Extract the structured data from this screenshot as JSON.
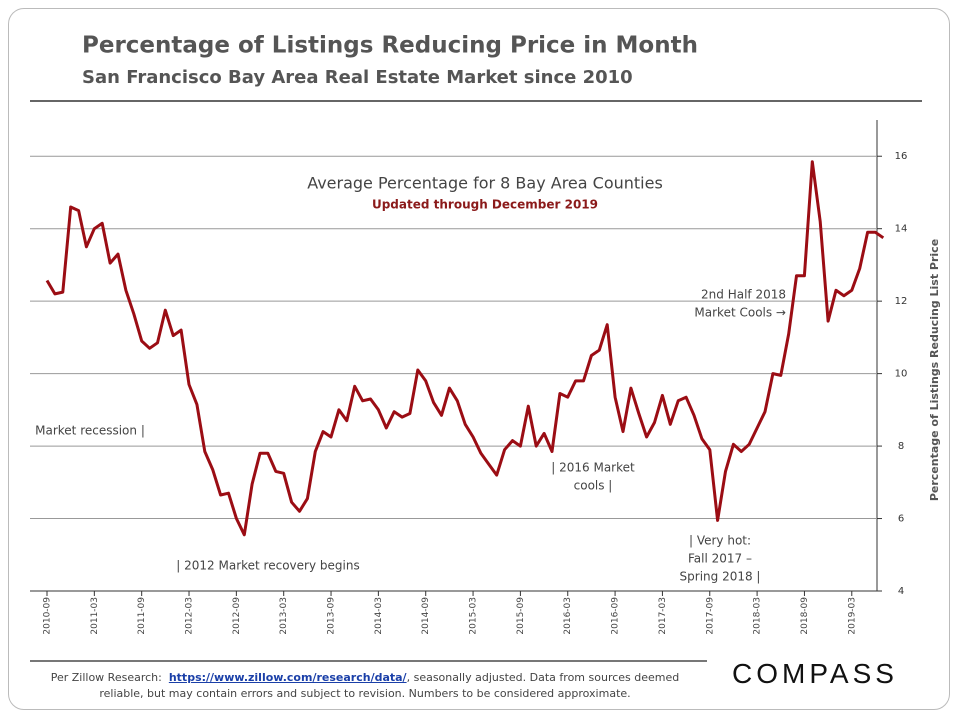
{
  "chart_data": {
    "type": "line",
    "title": "Percentage of Listings Reducing Price in Month",
    "subtitle": "San Francisco Bay Area Real Estate Market since 2010",
    "inner_title": "Average Percentage for 8 Bay Area Counties",
    "inner_subtitle": "Updated through December 2019",
    "y_label": "Percentage of Listings Reducing List Price",
    "categories": [
      "2010-09",
      null,
      null,
      null,
      null,
      null,
      "2011-03",
      null,
      null,
      null,
      null,
      null,
      "2011-09",
      null,
      null,
      null,
      null,
      null,
      "2012-03",
      null,
      null,
      null,
      null,
      null,
      "2012-09",
      null,
      null,
      null,
      null,
      null,
      "2013-03",
      null,
      null,
      null,
      null,
      null,
      "2013-09",
      null,
      null,
      null,
      null,
      null,
      "2014-03",
      null,
      null,
      null,
      null,
      null,
      "2014-09",
      null,
      null,
      null,
      null,
      null,
      "2015-03",
      null,
      null,
      null,
      null,
      null,
      "2015-09",
      null,
      null,
      null,
      null,
      null,
      "2016-03",
      null,
      null,
      null,
      null,
      null,
      "2016-09",
      null,
      null,
      null,
      null,
      null,
      "2017-03",
      null,
      null,
      null,
      null,
      null,
      "2017-09",
      null,
      null,
      null,
      null,
      null,
      "2018-03",
      null,
      null,
      null,
      null,
      null,
      "2018-09",
      null,
      null,
      null,
      null,
      null,
      "2019-03",
      null,
      null,
      null,
      null
    ],
    "series": [
      {
        "name": "Percentage of Listings Reducing List Price",
        "color": "#9b0d14",
        "values": [
          12.57,
          12.2,
          12.25,
          14.6,
          14.5,
          13.5,
          14.0,
          14.15,
          13.05,
          13.3,
          12.3,
          11.65,
          10.9,
          10.7,
          10.85,
          11.75,
          11.05,
          11.2,
          9.7,
          9.15,
          7.85,
          7.35,
          6.65,
          6.7,
          6.0,
          5.55,
          6.95,
          7.8,
          7.8,
          7.3,
          7.25,
          6.45,
          6.2,
          6.55,
          7.85,
          8.4,
          8.25,
          9.0,
          8.7,
          9.65,
          9.25,
          9.3,
          9.0,
          8.5,
          8.95,
          8.8,
          8.9,
          10.1,
          9.8,
          9.2,
          8.85,
          9.6,
          9.25,
          8.6,
          8.25,
          7.8,
          7.5,
          7.2,
          7.9,
          8.15,
          8.0,
          9.1,
          8.0,
          8.35,
          7.85,
          9.45,
          9.35,
          9.8,
          9.8,
          10.5,
          10.65,
          11.35,
          9.35,
          8.4,
          9.6,
          8.9,
          8.25,
          8.65,
          9.4,
          8.6,
          9.25,
          9.35,
          8.85,
          8.2,
          7.9,
          5.95,
          7.3,
          8.05,
          7.85,
          8.05,
          8.5,
          8.95,
          10.0,
          9.95,
          11.1,
          12.7,
          12.7,
          15.85,
          14.2,
          11.45,
          12.3,
          12.15,
          12.3,
          12.9,
          13.9,
          13.9,
          13.75
        ]
      }
    ],
    "ylim": [
      4,
      17
    ],
    "yticks": [
      4,
      6,
      8,
      10,
      12,
      14,
      16
    ],
    "grid": true,
    "y_axis_side": "right",
    "annotations": [
      [
        "Market recession |"
      ],
      [
        "|  2012  Market recovery begins"
      ],
      [
        "|  2016  Market",
        "cools |"
      ],
      [
        "|  Very hot:",
        "Fall 2017  –",
        "Spring 2018  |"
      ],
      [
        "2nd Half 2018",
        "Market Cools →"
      ]
    ]
  },
  "footer": {
    "prefix": "Per Zillow Research:",
    "link": "https://www.zillow.com/research/data/",
    "text": ", seasonally adjusted. Data from sources deemed reliable, but may contain errors and subject to revision. Numbers to be considered approximate."
  },
  "logo": "COMPASS"
}
